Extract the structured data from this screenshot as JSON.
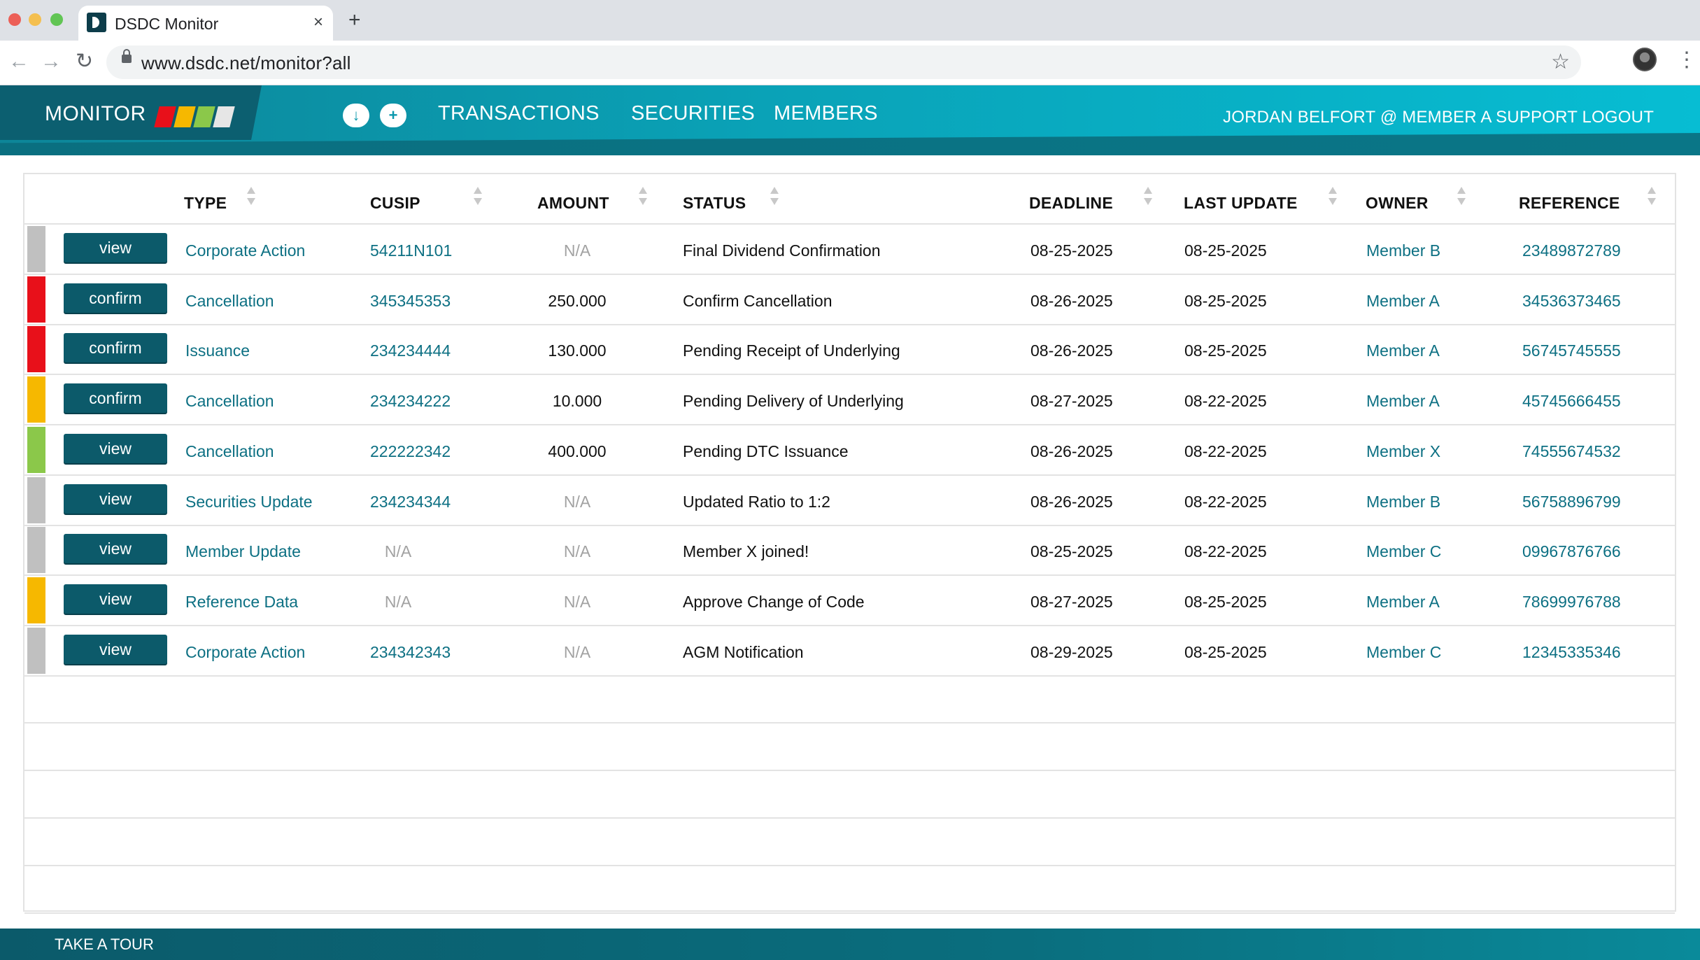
{
  "browser": {
    "tab_title": "DSDC Monitor",
    "tab_close": "×",
    "new_tab": "+",
    "url": "www.dsdc.net/monitor?all",
    "back": "←",
    "forward": "→",
    "reload": "↻",
    "star": "☆",
    "menu": "⋮"
  },
  "header": {
    "brand": "MONITOR",
    "brand_colors": [
      "#e8101a",
      "#f6b800",
      "#8bc84a",
      "#e6e6e6"
    ],
    "download_icon": "↓",
    "add_icon": "+",
    "nav": [
      "TRANSACTIONS",
      "SECURITIES",
      "MEMBERS"
    ],
    "user": "JORDAN BELFORT @ MEMBER A SUPPORT LOGOUT"
  },
  "table": {
    "columns": [
      "TYPE",
      "CUSIP",
      "AMOUNT",
      "STATUS",
      "DEADLINE",
      "LAST UPDATE",
      "OWNER",
      "REFERENCE"
    ],
    "rows": [
      {
        "priority": "#c0c0c0",
        "action": "view",
        "type": "Corporate Action",
        "cusip": "54211N101",
        "amount": "N/A",
        "status": "Final Dividend Confirmation",
        "deadline": "08-25-2025",
        "last_update": "08-25-2025",
        "owner": "Member B",
        "reference": "23489872789"
      },
      {
        "priority": "#e8101a",
        "action": "confirm",
        "type": "Cancellation",
        "cusip": "345345353",
        "amount": "250.000",
        "status": "Confirm Cancellation",
        "deadline": "08-26-2025",
        "last_update": "08-25-2025",
        "owner": "Member A",
        "reference": "34536373465"
      },
      {
        "priority": "#e8101a",
        "action": "confirm",
        "type": "Issuance",
        "cusip": "234234444",
        "amount": "130.000",
        "status": "Pending Receipt of Underlying",
        "deadline": "08-26-2025",
        "last_update": "08-25-2025",
        "owner": "Member A",
        "reference": "56745745555"
      },
      {
        "priority": "#f6b800",
        "action": "confirm",
        "type": "Cancellation",
        "cusip": "234234222",
        "amount": "10.000",
        "status": "Pending Delivery of Underlying",
        "deadline": "08-27-2025",
        "last_update": "08-22-2025",
        "owner": "Member A",
        "reference": "45745666455"
      },
      {
        "priority": "#8bc84a",
        "action": "view",
        "type": "Cancellation",
        "cusip": "222222342",
        "amount": "400.000",
        "status": "Pending DTC Issuance",
        "deadline": "08-26-2025",
        "last_update": "08-22-2025",
        "owner": "Member X",
        "reference": "74555674532"
      },
      {
        "priority": "#c0c0c0",
        "action": "view",
        "type": "Securities Update",
        "cusip": "234234344",
        "amount": "N/A",
        "status": "Updated Ratio to 1:2",
        "deadline": "08-26-2025",
        "last_update": "08-22-2025",
        "owner": "Member B",
        "reference": "56758896799"
      },
      {
        "priority": "#c0c0c0",
        "action": "view",
        "type": "Member Update",
        "cusip": "N/A",
        "amount": "N/A",
        "status": "Member X joined!",
        "deadline": "08-25-2025",
        "last_update": "08-22-2025",
        "owner": "Member C",
        "reference": "09967876766"
      },
      {
        "priority": "#f6b800",
        "action": "view",
        "type": "Reference Data",
        "cusip": "N/A",
        "amount": "N/A",
        "status": "Approve Change of Code",
        "deadline": "08-27-2025",
        "last_update": "08-25-2025",
        "owner": "Member A",
        "reference": "78699976788"
      },
      {
        "priority": "#c0c0c0",
        "action": "view",
        "type": "Corporate Action",
        "cusip": "234342343",
        "amount": "N/A",
        "status": "AGM Notification",
        "deadline": "08-29-2025",
        "last_update": "08-25-2025",
        "owner": "Member C",
        "reference": "12345335346"
      }
    ],
    "empty_rows": 5
  },
  "footer": {
    "tour": "TAKE A TOUR"
  }
}
